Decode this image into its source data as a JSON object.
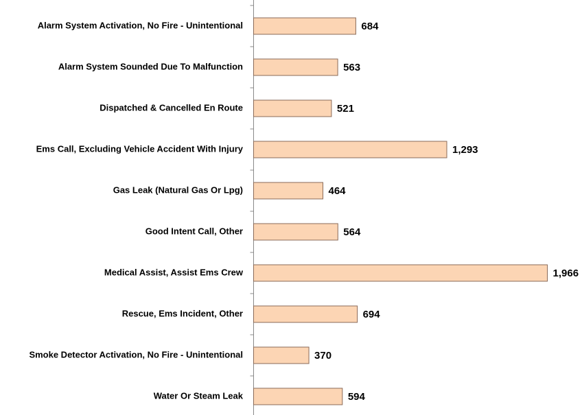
{
  "chart_data": {
    "type": "barh",
    "categories": [
      "Alarm System Activation, No Fire - Unintentional",
      "Alarm System Sounded Due To Malfunction",
      "Dispatched & Cancelled En Route",
      "Ems Call, Excluding Vehicle Accident With Injury",
      "Gas Leak (Natural Gas Or Lpg)",
      "Good Intent Call, Other",
      "Medical Assist, Assist Ems Crew",
      "Rescue, Ems Incident, Other",
      "Smoke Detector Activation, No Fire - Unintentional",
      "Water Or Steam Leak"
    ],
    "values": [
      684,
      563,
      521,
      1293,
      464,
      564,
      1966,
      694,
      370,
      594
    ],
    "value_labels": [
      "684",
      "563",
      "521",
      "1,293",
      "464",
      "564",
      "1,966",
      "694",
      "370",
      "594"
    ],
    "color": "#fcd5b4",
    "edge_color": "#8a6a58"
  }
}
